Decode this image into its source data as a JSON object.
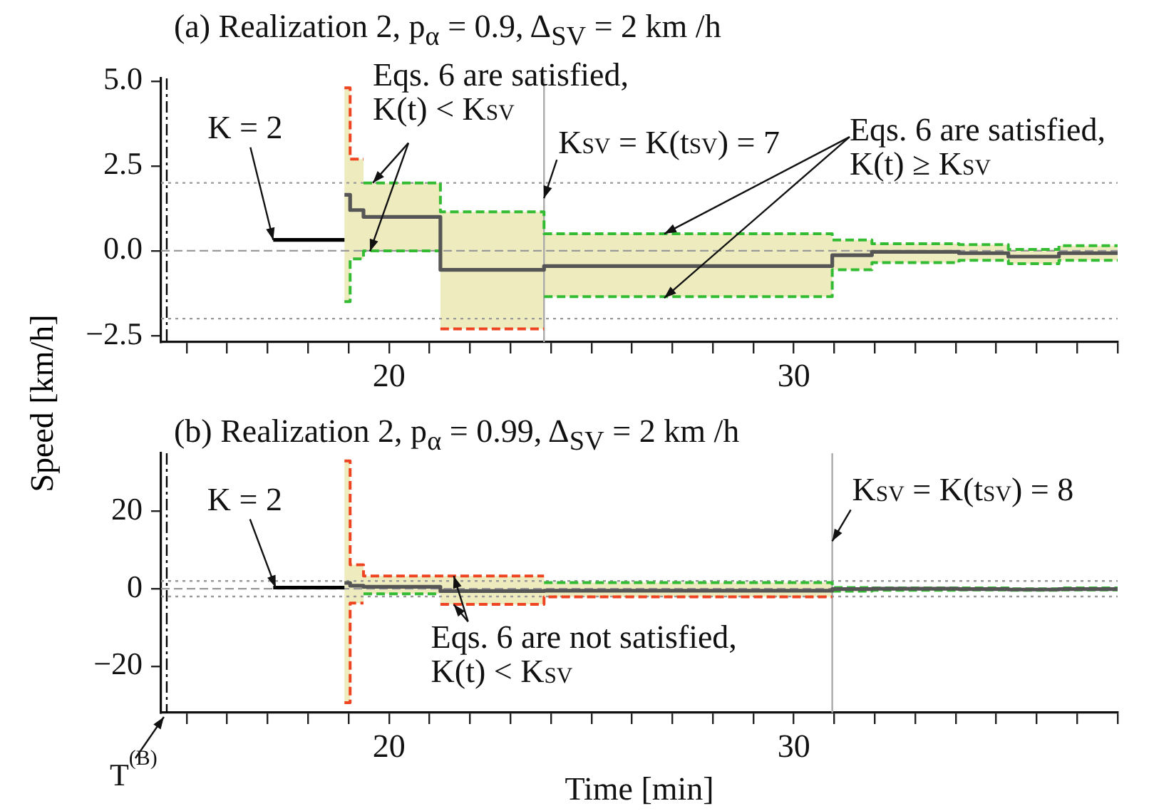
{
  "chart_data": [
    {
      "type": "step",
      "title": "(a) Realization 2, p$_{α}$ = 0.9, Δ$_{SV}$ = 2 km /h",
      "ylabel": "Speed [km/h]",
      "xlim": [
        14.37,
        38
      ],
      "xticks": [
        {
          "value": 15,
          "label": null
        },
        {
          "value": 16,
          "label": null
        },
        {
          "value": 17,
          "label": null
        },
        {
          "value": 18,
          "label": null
        },
        {
          "value": 19,
          "label": null
        },
        {
          "value": 20,
          "label": "20"
        },
        {
          "value": 21,
          "label": null
        },
        {
          "value": 22,
          "label": null
        },
        {
          "value": 23,
          "label": null
        },
        {
          "value": 24,
          "label": null
        },
        {
          "value": 25,
          "label": null
        },
        {
          "value": 26,
          "label": null
        },
        {
          "value": 27,
          "label": null
        },
        {
          "value": 28,
          "label": null
        },
        {
          "value": 29,
          "label": null
        },
        {
          "value": 30,
          "label": "30"
        },
        {
          "value": 31,
          "label": null
        },
        {
          "value": 32,
          "label": null
        },
        {
          "value": 33,
          "label": null
        },
        {
          "value": 34,
          "label": null
        },
        {
          "value": 35,
          "label": null
        },
        {
          "value": 36,
          "label": null
        },
        {
          "value": 37,
          "label": null
        },
        {
          "value": 38,
          "label": null
        }
      ],
      "ylim": [
        -2.69,
        5.08
      ],
      "yticks": [
        {
          "value": 5,
          "label": "5.0"
        },
        {
          "value": 2.5,
          "label": "2.5"
        },
        {
          "value": 0,
          "label": "0.0"
        },
        {
          "value": -2.5,
          "label": "−2.5"
        }
      ],
      "grid": false,
      "legend": false,
      "series": [
        {
          "color": "#555555",
          "x": [
            18.9,
            19.04,
            19.37,
            21.27,
            23.83,
            30.95,
            31.93,
            34.08,
            35.3,
            36.55,
            38
          ],
          "values": [
            1.65,
            1.2,
            1.0,
            -0.56,
            -0.45,
            -0.13,
            -0.03,
            -0.07,
            -0.17,
            -0.07,
            -0.07
          ],
          "upper": [
            4.8,
            2.7,
            2.0,
            1.15,
            0.5,
            0.32,
            0.21,
            0.18,
            0.04,
            0.15,
            0.15
          ],
          "lower": [
            -1.5,
            -0.24,
            0.0,
            -2.3,
            -1.35,
            -0.56,
            -0.35,
            -0.28,
            -0.38,
            -0.28,
            -0.28
          ]
        },
        {
          "color": "#000000",
          "x": [
            17.14,
            18.9
          ],
          "values": [
            0.32,
            0.32
          ]
        },
        {
          "color": "#ee4422",
          "line_style": "dashed",
          "x": [
            18.9,
            19.04,
            19.37
          ],
          "values": [
            4.8,
            2.7,
            2.7
          ]
        },
        {
          "color": "#33bb33",
          "line_style": "dashed",
          "x": [
            19.37,
            21.27,
            23.83,
            30.95,
            31.93,
            34.08,
            35.3,
            36.55,
            38
          ],
          "values": [
            2.0,
            1.15,
            0.5,
            0.32,
            0.21,
            0.18,
            0.04,
            0.15,
            0.15
          ]
        },
        {
          "color": "#33bb33",
          "line_style": "dashed",
          "x": [
            18.9,
            19.04,
            19.37,
            21.27
          ],
          "values": [
            -1.5,
            -0.24,
            0.0,
            0.0
          ]
        },
        {
          "color": "#ee4422",
          "line_style": "dashed",
          "x": [
            21.27,
            23.83
          ],
          "values": [
            -2.3,
            -2.3
          ]
        },
        {
          "color": "#33bb33",
          "line_style": "dashed",
          "x": [
            23.83,
            30.95,
            31.93,
            34.08,
            35.3,
            36.55,
            38
          ],
          "values": [
            -1.35,
            -0.56,
            -0.35,
            -0.28,
            -0.38,
            -0.28,
            -0.28
          ]
        }
      ],
      "ref_lines": [
        {
          "axis": "x",
          "value": 14.51,
          "line_style": "dashdot",
          "color": "#000000"
        },
        {
          "axis": "x",
          "value": 23.83,
          "color": "#aaaaaa"
        },
        {
          "axis": "y",
          "value": 2,
          "line_style": "dotted",
          "color": "#999999"
        },
        {
          "axis": "y",
          "value": -2,
          "line_style": "dotted",
          "color": "#999999"
        },
        {
          "axis": "y",
          "value": 0,
          "line_style": "dashed",
          "color": "#999999"
        }
      ],
      "annotations": [
        {
          "text": "K = 2",
          "x": 17.14,
          "y": 0.32
        },
        {
          "text": "Eqs. 6 are satisfied,\nK(t) < K$_{SV}$",
          "x": 19.6,
          "y": 2.0
        },
        {
          "text": "K$_{SV}$ = K(t$_{SV}$) = 7",
          "x": 23.83,
          "y": 1.55
        },
        {
          "text": "Eqs. 6 are satisfied,\nK(t) ≥ K$_{SV}$",
          "x": 26.8,
          "y": 0.5
        }
      ]
    },
    {
      "type": "step",
      "title": "(b) Realization 2, p$_{α}$ = 0.99, Δ$_{SV}$ = 2 km /h",
      "xlabel": "Time [min]",
      "xlim": [
        14.37,
        38
      ],
      "xticks": [
        {
          "value": 15,
          "label": null
        },
        {
          "value": 16,
          "label": null
        },
        {
          "value": 17,
          "label": null
        },
        {
          "value": 18,
          "label": null
        },
        {
          "value": 19,
          "label": null
        },
        {
          "value": 20,
          "label": "20"
        },
        {
          "value": 21,
          "label": null
        },
        {
          "value": 22,
          "label": null
        },
        {
          "value": 23,
          "label": null
        },
        {
          "value": 24,
          "label": null
        },
        {
          "value": 25,
          "label": null
        },
        {
          "value": 26,
          "label": null
        },
        {
          "value": 27,
          "label": null
        },
        {
          "value": 28,
          "label": null
        },
        {
          "value": 29,
          "label": null
        },
        {
          "value": 30,
          "label": "30"
        },
        {
          "value": 31,
          "label": null
        },
        {
          "value": 32,
          "label": null
        },
        {
          "value": 33,
          "label": null
        },
        {
          "value": 34,
          "label": null
        },
        {
          "value": 35,
          "label": null
        },
        {
          "value": 36,
          "label": null
        },
        {
          "value": 37,
          "label": null
        },
        {
          "value": 38,
          "label": null
        }
      ],
      "ylim": [
        -32,
        35
      ],
      "yticks": [
        20,
        0,
        {
          "value": -20,
          "label": "−20"
        }
      ],
      "grid": false,
      "legend": false,
      "series": [
        {
          "color": "#555555",
          "x": [
            18.9,
            19.04,
            19.37,
            21.27,
            23.83,
            30.95,
            31.93,
            34.08,
            35.3,
            36.55,
            38
          ],
          "values": [
            1.5,
            0.8,
            0.5,
            -0.6,
            -0.5,
            -0.1,
            0.0,
            -0.1,
            -0.2,
            -0.1,
            -0.1
          ],
          "upper": [
            33,
            6.2,
            3.3,
            3.3,
            1.6,
            0.3,
            0.2,
            0.2,
            0.0,
            0.2,
            0.2
          ],
          "lower": [
            -29.4,
            -3.7,
            -1.3,
            -4.0,
            -2.1,
            -0.6,
            -0.4,
            -0.3,
            -0.4,
            -0.3,
            -0.3
          ]
        },
        {
          "color": "#000000",
          "x": [
            17.14,
            18.9
          ],
          "values": [
            0.3,
            0.3
          ]
        },
        {
          "color": "#ee4422",
          "line_style": "dashed",
          "x": [
            18.9,
            19.04,
            19.37,
            21.27,
            23.83
          ],
          "values": [
            33,
            6.2,
            3.3,
            3.3,
            3.3
          ]
        },
        {
          "color": "#33bb33",
          "line_style": "dashed",
          "x": [
            23.83,
            30.95,
            31.93,
            34.08,
            35.3,
            36.55,
            38
          ],
          "values": [
            1.6,
            0.3,
            0.2,
            0.2,
            0.0,
            0.2,
            0.2
          ]
        },
        {
          "color": "#ee4422",
          "line_style": "dashed",
          "x": [
            18.9,
            19.04,
            19.37
          ],
          "values": [
            -29.4,
            -3.7,
            -3.7
          ]
        },
        {
          "color": "#33bb33",
          "line_style": "dashed",
          "x": [
            19.37,
            21.27
          ],
          "values": [
            -1.3,
            -1.3
          ]
        },
        {
          "color": "#ee4422",
          "line_style": "dashed",
          "x": [
            21.27,
            23.83,
            30.95
          ],
          "values": [
            -4.0,
            -2.1,
            -2.1
          ]
        },
        {
          "color": "#33bb33",
          "line_style": "dashed",
          "x": [
            30.95,
            31.93,
            34.08,
            35.3,
            36.55,
            38
          ],
          "values": [
            -0.6,
            -0.4,
            -0.3,
            -0.4,
            -0.3,
            -0.3
          ]
        }
      ],
      "ref_lines": [
        {
          "axis": "x",
          "value": 14.51,
          "line_style": "dashdot",
          "color": "#000000",
          "label": "T$^{(B)}$"
        },
        {
          "axis": "x",
          "value": 30.95,
          "color": "#aaaaaa"
        },
        {
          "axis": "y",
          "value": 2,
          "line_style": "dotted",
          "color": "#999999"
        },
        {
          "axis": "y",
          "value": -2,
          "line_style": "dotted",
          "color": "#999999"
        },
        {
          "axis": "y",
          "value": 0,
          "line_style": "dashed",
          "color": "#999999"
        }
      ],
      "annotations": [
        {
          "text": "K = 2",
          "x": 17.2,
          "y": 0.3
        },
        {
          "text": "Eqs. 6 are not satisfied,\nK(t) < K$_{SV}$",
          "x": 21.6,
          "y": 3.3
        },
        {
          "text": "K$_{SV}$ = K(t$_{SV}$) = 8",
          "x": 30.95,
          "y": 12.3
        }
      ]
    }
  ]
}
